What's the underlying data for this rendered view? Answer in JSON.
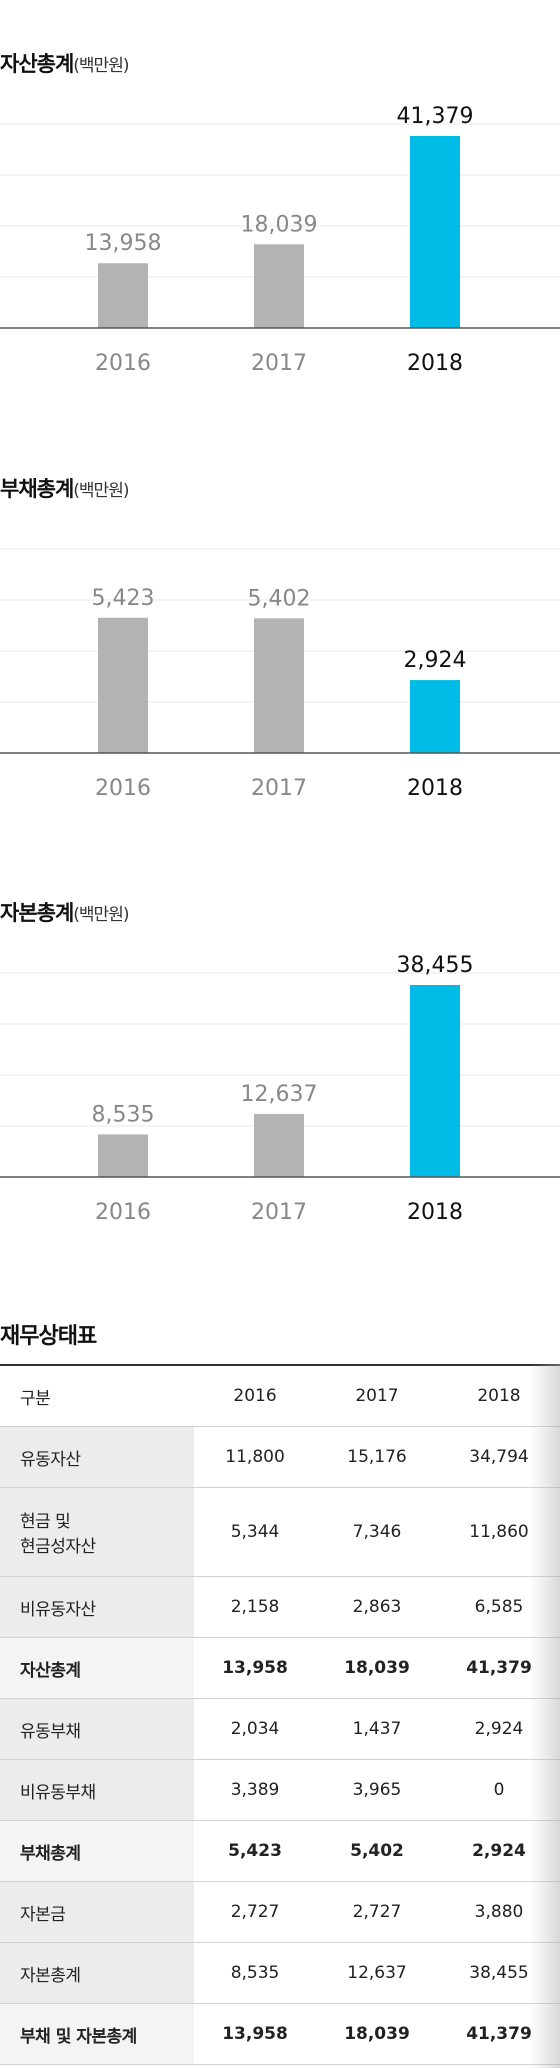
{
  "chart_data": [
    {
      "type": "bar",
      "title": "자산총계",
      "unit": "(백만원)",
      "categories": [
        "2016",
        "2017",
        "2018"
      ],
      "values": [
        13958,
        18039,
        41379
      ],
      "value_labels": [
        "13,958",
        "18,039",
        "41,379"
      ],
      "highlight_index": 2,
      "ylim": [
        0,
        41379
      ],
      "grid": true
    },
    {
      "type": "bar",
      "title": "부채총계",
      "unit": "(백만원)",
      "categories": [
        "2016",
        "2017",
        "2018"
      ],
      "values": [
        5423,
        5402,
        2924
      ],
      "value_labels": [
        "5,423",
        "5,402",
        "2,924"
      ],
      "highlight_index": 2,
      "ylim": [
        0,
        7700
      ],
      "grid": true
    },
    {
      "type": "bar",
      "title": "자본총계",
      "unit": "(백만원)",
      "categories": [
        "2016",
        "2017",
        "2018"
      ],
      "values": [
        8535,
        12637,
        38455
      ],
      "value_labels": [
        "8,535",
        "12,637",
        "38,455"
      ],
      "highlight_index": 2,
      "ylim": [
        0,
        38455
      ],
      "grid": true
    }
  ],
  "colors": {
    "bar": "#b3b3b3",
    "highlight": "#00bbe6",
    "axis": "#555555",
    "grid": "#e8e8e8",
    "label": "#888888",
    "highlight_label": "#111111"
  },
  "table": {
    "title": "재무상태표",
    "headers": [
      "구분",
      "2016",
      "2017",
      "2018"
    ],
    "rows": [
      {
        "label": "유동자산",
        "values": [
          "11,800",
          "15,176",
          "34,794"
        ],
        "bold": false
      },
      {
        "label": "현금 및\n현금성자산",
        "values": [
          "5,344",
          "7,346",
          "11,860"
        ],
        "bold": false,
        "tall": true
      },
      {
        "label": "비유동자산",
        "values": [
          "2,158",
          "2,863",
          "6,585"
        ],
        "bold": false
      },
      {
        "label": "자산총계",
        "values": [
          "13,958",
          "18,039",
          "41,379"
        ],
        "bold": true
      },
      {
        "label": "유동부채",
        "values": [
          "2,034",
          "1,437",
          "2,924"
        ],
        "bold": false
      },
      {
        "label": "비유동부채",
        "values": [
          "3,389",
          "3,965",
          "0"
        ],
        "bold": false
      },
      {
        "label": "부채총계",
        "values": [
          "5,423",
          "5,402",
          "2,924"
        ],
        "bold": true
      },
      {
        "label": "자본금",
        "values": [
          "2,727",
          "2,727",
          "3,880"
        ],
        "bold": false
      },
      {
        "label": "자본총계",
        "values": [
          "8,535",
          "12,637",
          "38,455"
        ],
        "bold": false
      },
      {
        "label": "부채 및 자본총계",
        "values": [
          "13,958",
          "18,039",
          "41,379"
        ],
        "bold": true
      }
    ]
  }
}
